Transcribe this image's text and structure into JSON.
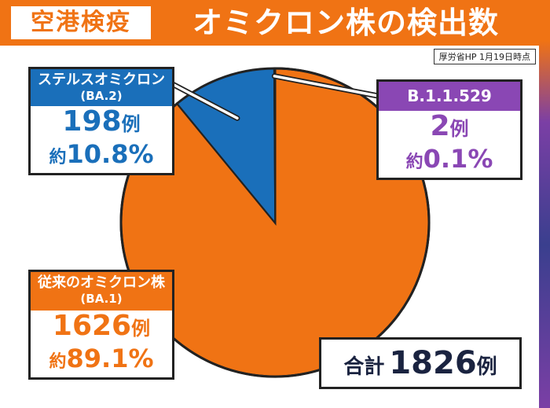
{
  "header": {
    "tag": "空港検疫",
    "title": "オミクロン株の検出数"
  },
  "source": "厚労省HP 1月19日時点",
  "colors": {
    "orange": "#f07314",
    "blue": "#1a6fba",
    "purple": "#8a47b4",
    "navy": "#1a2340"
  },
  "chart_data": {
    "type": "pie",
    "title": "オミクロン株の検出数",
    "series": [
      {
        "name": "従来のオミクロン株 (BA.1)",
        "value": 1626,
        "percent_label": "約89.1%",
        "color": "#f07314"
      },
      {
        "name": "ステルスオミクロン (BA.2)",
        "value": 198,
        "percent_label": "約10.8%",
        "color": "#1a6fba"
      },
      {
        "name": "B.1.1.529",
        "value": 2,
        "percent_label": "約0.1%",
        "color": "#8a47b4"
      }
    ],
    "total": 1826
  },
  "labels": {
    "ba2": {
      "title": "ステルスオミクロン",
      "sub": "(BA.2)",
      "count": "198",
      "count_unit": "例",
      "pct_prefix": "約",
      "pct": "10.8%"
    },
    "b11529": {
      "title": "B.1.1.529",
      "count": "2",
      "count_unit": "例",
      "pct_prefix": "約",
      "pct": "0.1%"
    },
    "ba1": {
      "title": "従来のオミクロン株",
      "sub": "(BA.1)",
      "count": "1626",
      "count_unit": "例",
      "pct_prefix": "約",
      "pct": "89.1%"
    }
  },
  "total_box": {
    "label": "合計",
    "value": "1826",
    "unit": "例"
  }
}
